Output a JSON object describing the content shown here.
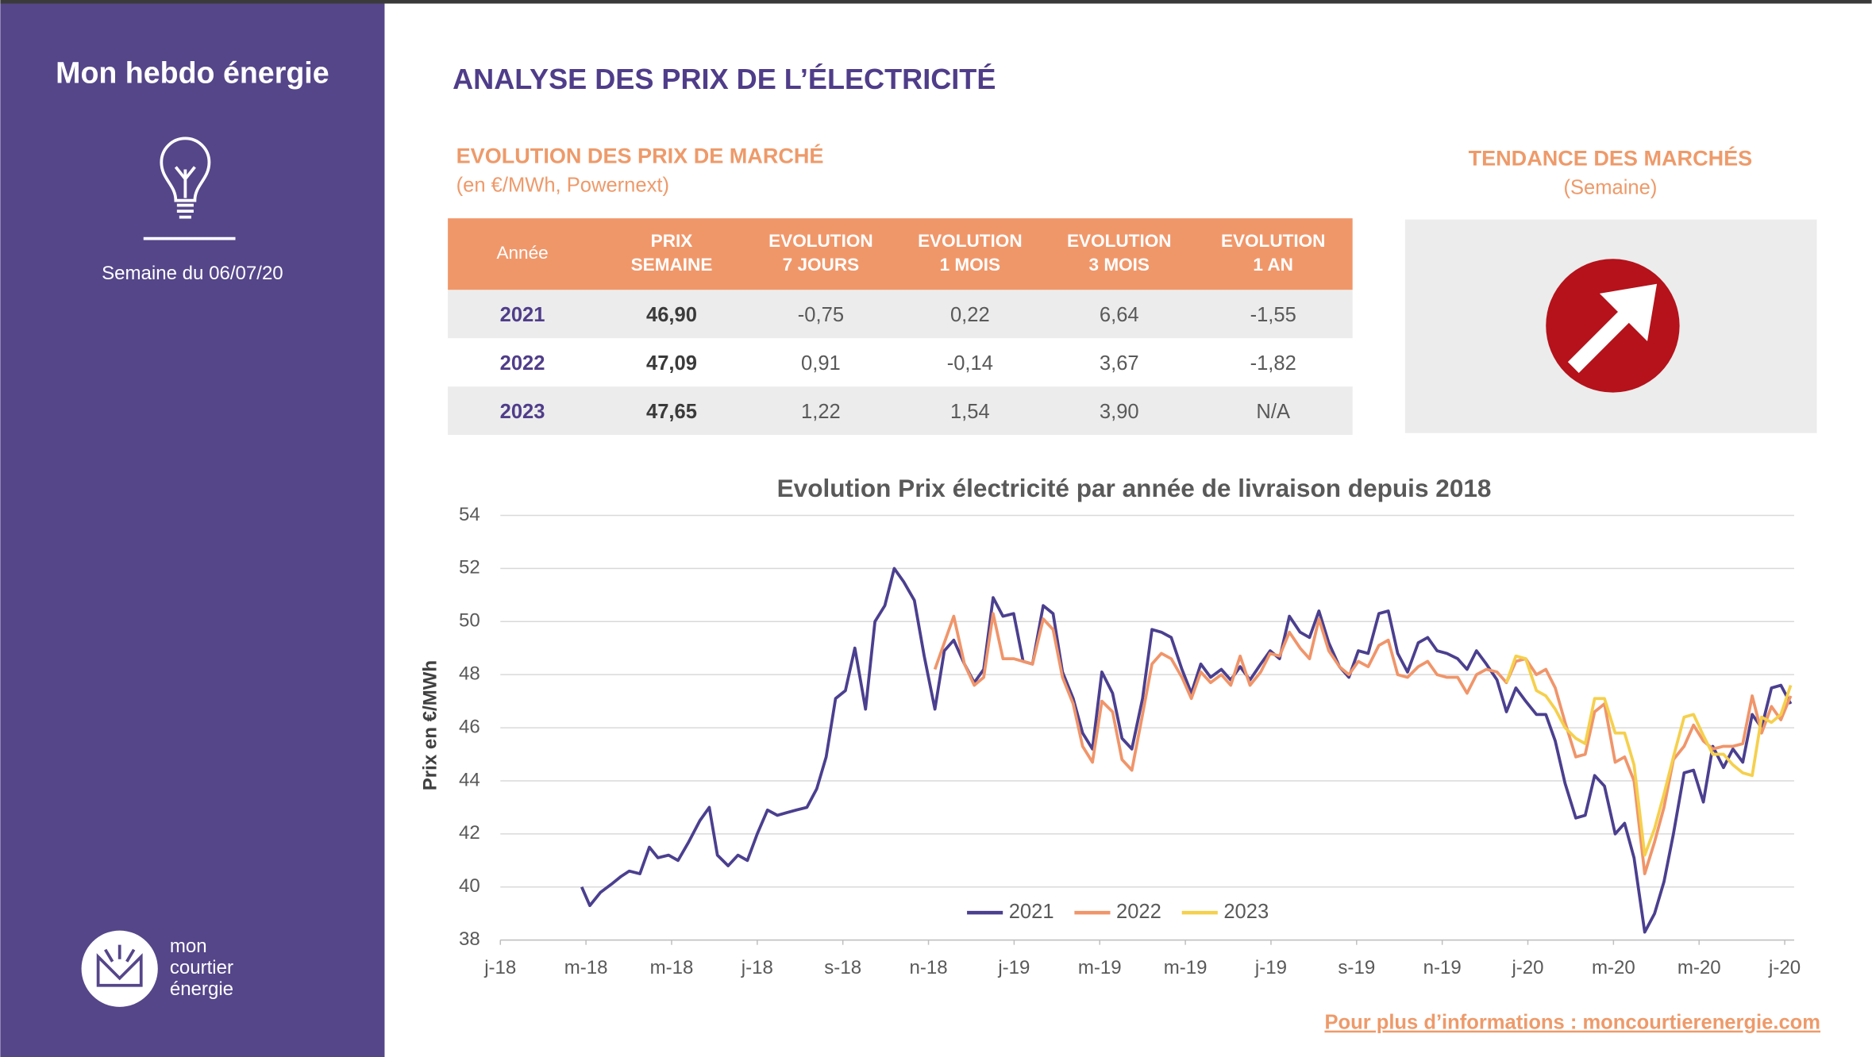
{
  "header": {
    "title": "Mon hebdo énergie",
    "week": "Semaine du 06/07/20"
  },
  "logo": [
    "mon",
    "courtier",
    "énergie"
  ],
  "title": "ANALYSE DES PRIX DE L’ÉLECTRICITÉ",
  "market": {
    "title": "EVOLUTION DES PRIX DE MARCHÉ",
    "unit": "(en €/MWh, Powernext)"
  },
  "table": {
    "header": [
      [
        "Année"
      ],
      [
        "PRIX",
        "SEMAINE"
      ],
      [
        "EVOLUTION",
        "7 JOURS"
      ],
      [
        "EVOLUTION",
        "1 MOIS"
      ],
      [
        "EVOLUTION",
        "3 MOIS"
      ],
      [
        "EVOLUTION",
        "1 AN"
      ]
    ],
    "rows": [
      [
        "2021",
        "46,90",
        "-0,75",
        "0,22",
        "6,64",
        "-1,55"
      ],
      [
        "2022",
        "47,09",
        "0,91",
        "-0,14",
        "3,67",
        "-1,82"
      ],
      [
        "2023",
        "47,65",
        "1,22",
        "1,54",
        "3,90",
        "N/A"
      ]
    ]
  },
  "trend": {
    "title": "TENDANCE DES MARCHÉS",
    "period": "(Semaine)"
  },
  "footer": {
    "link": "Pour plus d’informations : moncourtierenergie.com"
  },
  "chart_data": {
    "type": "line",
    "title": "Evolution Prix électricité par année de livraison depuis 2018",
    "y_label": "Prix en €/MWh",
    "xlim": [
      0,
      30.22
    ],
    "xticks": [
      {
        "value": 0,
        "label": "j-18"
      },
      {
        "value": 2,
        "label": "m-18"
      },
      {
        "value": 4,
        "label": "m-18"
      },
      {
        "value": 6,
        "label": "j-18"
      },
      {
        "value": 8,
        "label": "s-18"
      },
      {
        "value": 10,
        "label": "n-18"
      },
      {
        "value": 12,
        "label": "j-19"
      },
      {
        "value": 14,
        "label": "m-19"
      },
      {
        "value": 16,
        "label": "m-19"
      },
      {
        "value": 18,
        "label": "j-19"
      },
      {
        "value": 20,
        "label": "s-19"
      },
      {
        "value": 22,
        "label": "n-19"
      },
      {
        "value": 24,
        "label": "j-20"
      },
      {
        "value": 26,
        "label": "m-20"
      },
      {
        "value": 28,
        "label": "m-20"
      },
      {
        "value": 30,
        "label": "j-20"
      }
    ],
    "ylim": [
      38,
      54
    ],
    "yticks": [
      38,
      40,
      42,
      44,
      46,
      48,
      50,
      52,
      54
    ],
    "grid": true,
    "legend": "bottom",
    "x": [
      1.9,
      2.09,
      2.34,
      2.59,
      2.82,
      3.01,
      3.26,
      3.48,
      3.68,
      3.93,
      4.15,
      4.4,
      4.66,
      4.88,
      5.07,
      5.32,
      5.55,
      5.77,
      6.0,
      6.24,
      6.47,
      6.69,
      6.91,
      7.16,
      7.39,
      7.61,
      7.83,
      8.06,
      8.28,
      8.53,
      8.75,
      8.98,
      9.2,
      9.42,
      9.67,
      9.9,
      10.15,
      10.37,
      10.59,
      10.84,
      11.07,
      11.29,
      11.51,
      11.74,
      11.99,
      12.21,
      12.43,
      12.68,
      12.91,
      13.13,
      13.38,
      13.6,
      13.83,
      14.05,
      14.3,
      14.52,
      14.75,
      15.0,
      15.22,
      15.44,
      15.67,
      15.92,
      16.14,
      16.36,
      16.59,
      16.84,
      17.06,
      17.28,
      17.51,
      17.76,
      17.98,
      18.2,
      18.43,
      18.68,
      18.9,
      19.12,
      19.35,
      19.6,
      19.82,
      20.04,
      20.27,
      20.52,
      20.74,
      20.96,
      21.19,
      21.44,
      21.66,
      21.88,
      22.11,
      22.36,
      22.58,
      22.8,
      23.03,
      23.28,
      23.5,
      23.72,
      23.95,
      24.2,
      24.42,
      24.64,
      24.87,
      25.12,
      25.34,
      25.56,
      25.79,
      26.04,
      26.26,
      26.48,
      26.73,
      26.96,
      27.18,
      27.4,
      27.65,
      27.87,
      28.1,
      28.32,
      28.57,
      28.79,
      29.02,
      29.24,
      29.46,
      29.69,
      29.91,
      30.14
    ],
    "series": [
      {
        "name": "2021",
        "color": "#4b3f8f",
        "values": [
          40.0,
          39.3,
          39.8,
          40.1,
          40.4,
          40.6,
          40.5,
          41.5,
          41.1,
          41.2,
          41.0,
          41.7,
          42.5,
          43.0,
          41.2,
          40.8,
          41.2,
          41.0,
          42.0,
          42.9,
          42.7,
          42.8,
          42.9,
          43.0,
          43.7,
          44.9,
          47.1,
          47.4,
          49.0,
          46.7,
          50.0,
          50.6,
          52.0,
          51.5,
          50.8,
          48.7,
          46.7,
          48.9,
          49.3,
          48.4,
          47.7,
          48.2,
          50.9,
          50.2,
          50.3,
          48.5,
          48.4,
          50.6,
          50.3,
          48.1,
          47.1,
          45.8,
          45.2,
          48.1,
          47.3,
          45.6,
          45.2,
          47.1,
          49.7,
          49.6,
          49.4,
          48.2,
          47.3,
          48.4,
          47.9,
          48.2,
          47.8,
          48.3,
          47.8,
          48.4,
          48.9,
          48.6,
          50.2,
          49.6,
          49.4,
          50.4,
          49.2,
          48.3,
          47.9,
          48.9,
          48.8,
          50.3,
          50.4,
          48.8,
          48.1,
          49.2,
          49.4,
          48.9,
          48.8,
          48.6,
          48.2,
          48.9,
          48.4,
          47.8,
          46.6,
          47.5,
          47.0,
          46.5,
          46.5,
          45.5,
          43.9,
          42.6,
          42.7,
          44.2,
          43.8,
          42.0,
          42.4,
          41.1,
          38.3,
          39.0,
          40.2,
          42.0,
          44.3,
          44.4,
          43.2,
          45.3,
          44.5,
          45.2,
          44.7,
          46.5,
          46.0,
          47.5,
          47.6,
          46.9
        ]
      },
      {
        "name": "2022",
        "color": "#f0956a",
        "values": [
          null,
          null,
          null,
          null,
          null,
          null,
          null,
          null,
          null,
          null,
          null,
          null,
          null,
          null,
          null,
          null,
          null,
          null,
          null,
          null,
          null,
          null,
          null,
          null,
          null,
          null,
          null,
          null,
          null,
          null,
          null,
          null,
          null,
          null,
          null,
          null,
          48.2,
          49.2,
          50.2,
          48.4,
          47.6,
          47.9,
          50.3,
          48.6,
          48.6,
          48.5,
          48.4,
          50.1,
          49.7,
          47.9,
          46.9,
          45.3,
          44.7,
          47.0,
          46.6,
          44.8,
          44.4,
          46.5,
          48.4,
          48.8,
          48.6,
          47.9,
          47.1,
          48.1,
          47.7,
          48.0,
          47.6,
          48.7,
          47.6,
          48.1,
          48.8,
          48.7,
          49.6,
          49.0,
          48.6,
          50.1,
          48.9,
          48.3,
          48.0,
          48.5,
          48.3,
          49.1,
          49.3,
          48.0,
          47.9,
          48.3,
          48.5,
          48.0,
          47.9,
          47.9,
          47.3,
          48.0,
          48.2,
          48.1,
          47.7,
          48.5,
          48.6,
          48.0,
          48.2,
          47.5,
          46.2,
          44.9,
          45.0,
          46.6,
          46.9,
          44.7,
          44.9,
          44.0,
          40.5,
          41.7,
          43.0,
          44.8,
          45.3,
          46.1,
          45.5,
          45.2,
          45.3,
          45.3,
          45.4,
          47.2,
          45.8,
          46.8,
          46.3,
          47.2
        ]
      },
      {
        "name": "2023",
        "color": "#f5d04d",
        "values": [
          null,
          null,
          null,
          null,
          null,
          null,
          null,
          null,
          null,
          null,
          null,
          null,
          null,
          null,
          null,
          null,
          null,
          null,
          null,
          null,
          null,
          null,
          null,
          null,
          null,
          null,
          null,
          null,
          null,
          null,
          null,
          null,
          null,
          null,
          null,
          null,
          null,
          null,
          null,
          null,
          null,
          null,
          null,
          null,
          null,
          null,
          null,
          null,
          null,
          null,
          null,
          null,
          null,
          null,
          null,
          null,
          null,
          null,
          null,
          null,
          null,
          null,
          null,
          null,
          null,
          null,
          null,
          null,
          null,
          null,
          null,
          null,
          null,
          null,
          null,
          null,
          null,
          null,
          null,
          null,
          null,
          null,
          null,
          null,
          null,
          null,
          null,
          null,
          null,
          null,
          null,
          null,
          null,
          null,
          47.7,
          48.7,
          48.6,
          47.4,
          47.2,
          46.7,
          46.0,
          45.6,
          45.4,
          47.1,
          47.1,
          45.8,
          45.8,
          44.6,
          41.2,
          42.2,
          43.5,
          44.9,
          46.4,
          46.5,
          45.7,
          45.0,
          45.0,
          44.6,
          44.3,
          44.2,
          46.4,
          46.2,
          46.5,
          47.6
        ]
      }
    ]
  }
}
